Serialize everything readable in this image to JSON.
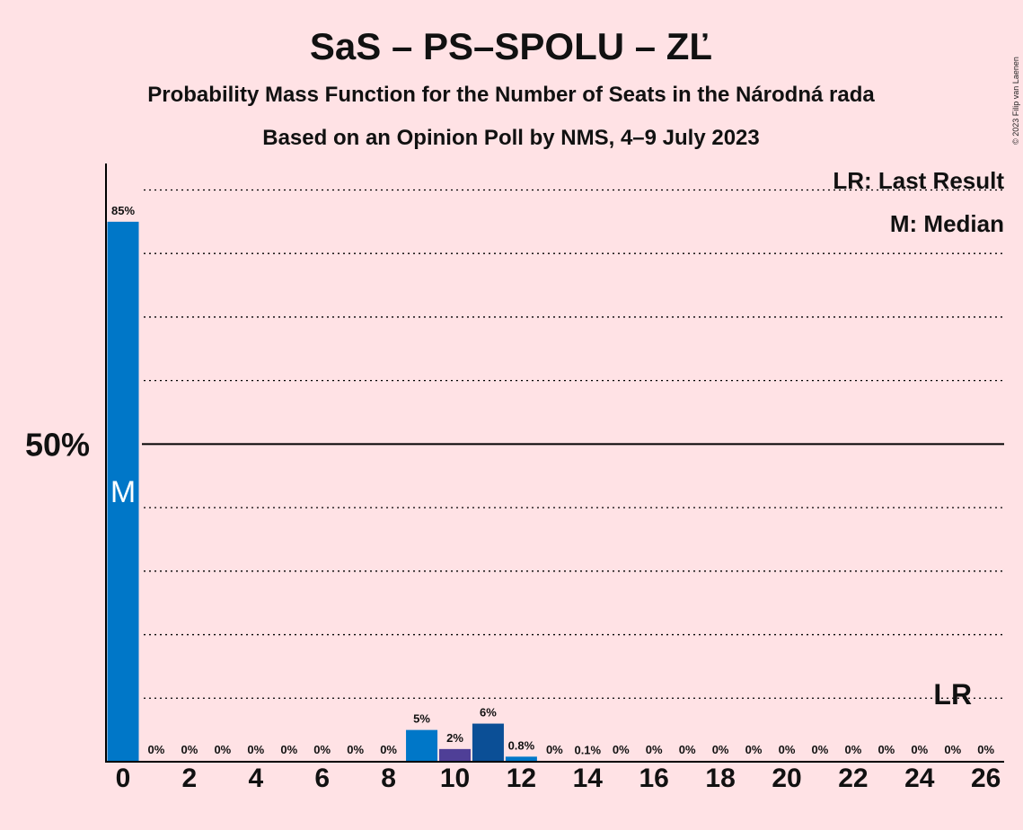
{
  "chart_data": {
    "type": "bar",
    "title": "SaS – PS–SPOLU – ZĽ",
    "subtitle1": "Probability Mass Function for the Number of Seats in the Národná rada",
    "subtitle2": "Based on an Opinion Poll by NMS, 4–9 July 2023",
    "copyright": "© 2023 Filip van Laenen",
    "legend": {
      "lr": "LR: Last Result",
      "m": "M: Median",
      "placement": "top-right"
    },
    "ytick_label": "50%",
    "ylim": [
      0,
      93
    ],
    "grid": [
      10,
      20,
      30,
      40,
      60,
      70,
      80,
      90
    ],
    "x": [
      0,
      1,
      2,
      3,
      4,
      5,
      6,
      7,
      8,
      9,
      10,
      11,
      12,
      13,
      14,
      15,
      16,
      17,
      18,
      19,
      20,
      21,
      22,
      23,
      24,
      25,
      26
    ],
    "values": [
      85,
      0,
      0,
      0,
      0,
      0,
      0,
      0,
      0,
      5,
      2,
      6,
      0.8,
      0,
      0.1,
      0,
      0,
      0,
      0,
      0,
      0,
      0,
      0,
      0,
      0,
      0,
      0
    ],
    "labels": [
      "85%",
      "0%",
      "0%",
      "0%",
      "0%",
      "0%",
      "0%",
      "0%",
      "0%",
      "5%",
      "2%",
      "6%",
      "0.8%",
      "0%",
      "0.1%",
      "0%",
      "0%",
      "0%",
      "0%",
      "0%",
      "0%",
      "0%",
      "0%",
      "0%",
      "0%",
      "0%",
      "0%"
    ],
    "colors": [
      "#0077C8",
      "#0077C8",
      "#0077C8",
      "#0077C8",
      "#0077C8",
      "#0077C8",
      "#0077C8",
      "#0077C8",
      "#0077C8",
      "#0077C8",
      "#4F3F97",
      "#0B4F96",
      "#0077C8",
      "#0077C8",
      "#0077C8",
      "#0077C8",
      "#0077C8",
      "#0077C8",
      "#0077C8",
      "#0077C8",
      "#0077C8",
      "#0077C8",
      "#0077C8",
      "#0077C8",
      "#0077C8",
      "#0077C8",
      "#0077C8"
    ],
    "xtick_labels": [
      "0",
      "2",
      "4",
      "6",
      "8",
      "10",
      "12",
      "14",
      "16",
      "18",
      "20",
      "22",
      "24",
      "26"
    ],
    "median": {
      "seats": 0,
      "label": "M"
    },
    "last_result": {
      "seats": 25,
      "label": "LR"
    }
  }
}
